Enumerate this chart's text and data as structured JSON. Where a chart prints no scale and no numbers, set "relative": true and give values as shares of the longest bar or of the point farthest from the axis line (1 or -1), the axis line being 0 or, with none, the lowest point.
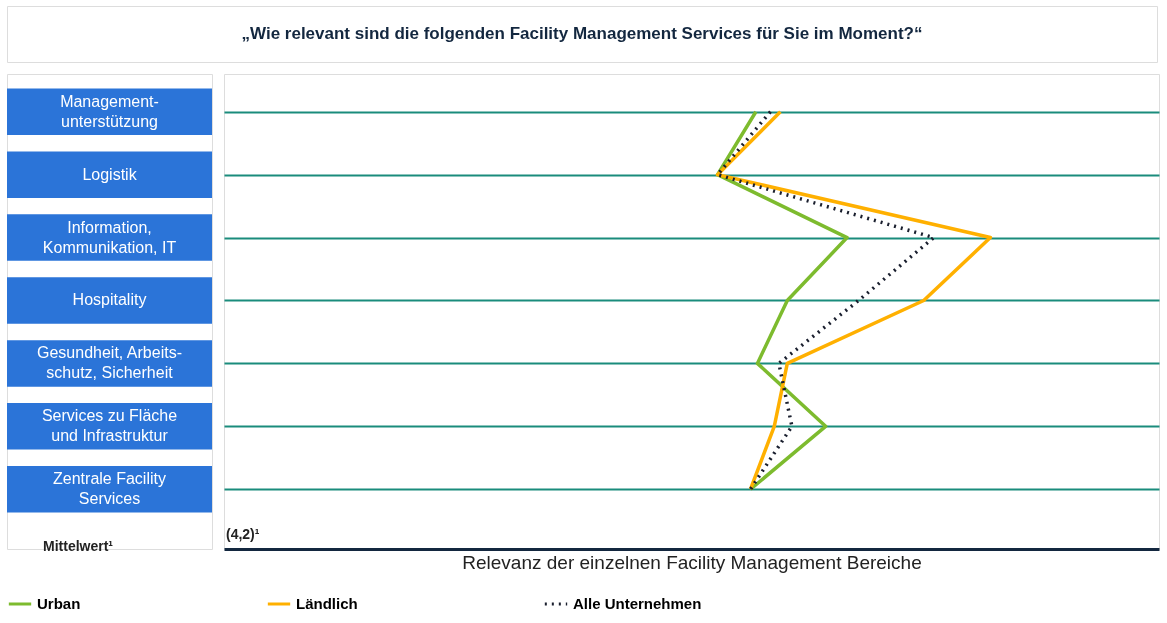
{
  "chart_data": {
    "type": "line",
    "orientation": "horizontal",
    "relative": true,
    "title": "„Wie relevant sind die folgenden Facility Management Services für Sie im Moment?“",
    "xlabel": "Relevanz der einzelnen Facility Management Bereiche",
    "categories": [
      "Management-\nunterstützung",
      "Logistik",
      "Information,\nKommunikation, IT",
      "Hospitality",
      "Gesundheit, Arbeits-\nschutz, Sicherheit",
      "Services zu Fläche\nund Infrastruktur",
      "Zentrale Facility\nServices"
    ],
    "series": [
      {
        "name": "Urban",
        "color": "#7dbb2e",
        "line_style": "solid",
        "values": [
          0.694,
          0.644,
          0.813,
          0.735,
          0.696,
          0.785,
          0.687
        ]
      },
      {
        "name": "Ländlich",
        "color": "#ffb000",
        "line_style": "solid",
        "values": [
          0.726,
          0.644,
          1.0,
          0.913,
          0.735,
          0.718,
          0.687
        ]
      },
      {
        "name": "Alle Unternehmen",
        "color": "#1a1f2e",
        "line_style": "dotted",
        "values": [
          0.713,
          0.644,
          0.926,
          0.828,
          0.724,
          0.741,
          0.687
        ]
      }
    ],
    "annotations": [
      "Mittelwert¹",
      "(4,2)¹"
    ],
    "grid": "y",
    "legend": "bottom",
    "marker": "none"
  }
}
